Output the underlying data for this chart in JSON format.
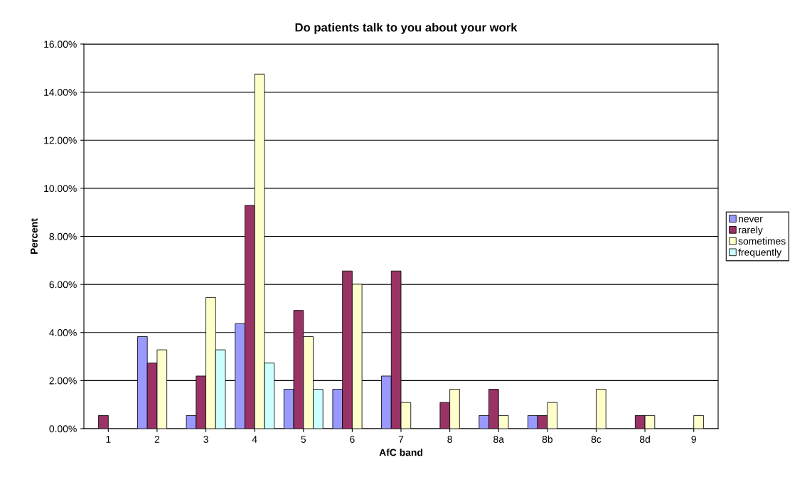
{
  "chart_data": {
    "type": "bar",
    "title": "Do patients talk to you about your work",
    "xlabel": "AfC band",
    "ylabel": "Percent",
    "categories": [
      "1",
      "2",
      "3",
      "4",
      "5",
      "6",
      "7",
      "8",
      "8a",
      "8b",
      "8c",
      "8d",
      "9"
    ],
    "series": [
      {
        "name": "never",
        "color": "#9999ff",
        "values": [
          0,
          3.83,
          0.55,
          4.37,
          1.64,
          1.64,
          2.19,
          0,
          0.55,
          0.55,
          0,
          0,
          0
        ]
      },
      {
        "name": "rarely",
        "color": "#993366",
        "values": [
          0.55,
          2.73,
          2.19,
          9.29,
          4.92,
          6.56,
          6.56,
          1.09,
          1.64,
          0.55,
          0,
          0.55,
          0
        ]
      },
      {
        "name": "sometimes",
        "color": "#ffffcc",
        "values": [
          0,
          3.28,
          5.46,
          14.75,
          3.83,
          6.01,
          1.09,
          1.64,
          0.55,
          1.09,
          1.64,
          0.55,
          0.55
        ]
      },
      {
        "name": "frequently",
        "color": "#ccffff",
        "values": [
          0,
          0,
          3.28,
          2.73,
          1.64,
          0,
          0,
          0,
          0,
          0,
          0,
          0,
          0
        ]
      }
    ],
    "ylim": [
      0,
      16
    ],
    "yticks": [
      {
        "value": 0,
        "label": "0.00%"
      },
      {
        "value": 2,
        "label": "2.00%"
      },
      {
        "value": 4,
        "label": "4.00%"
      },
      {
        "value": 6,
        "label": "6.00%"
      },
      {
        "value": 8,
        "label": "8.00%"
      },
      {
        "value": 10,
        "label": "10.00%"
      },
      {
        "value": 12,
        "label": "12.00%"
      },
      {
        "value": 14,
        "label": "14.00%"
      },
      {
        "value": 16,
        "label": "16.00%"
      }
    ],
    "grid": "y",
    "legend": "right"
  }
}
